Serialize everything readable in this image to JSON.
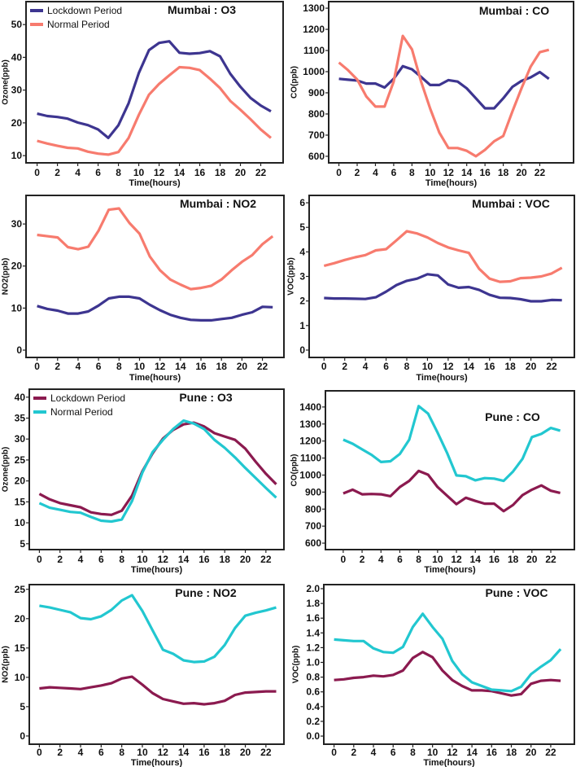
{
  "chart_data": [
    {
      "type": "line",
      "title": "Mumbai : O3",
      "xlabel": "Time(hours)",
      "ylabel": "Ozone(ppb)",
      "xlim": [
        -1.09,
        24.2
      ],
      "ylim": [
        7.8,
        57
      ],
      "xticks": [
        0,
        2,
        4,
        6,
        8,
        10,
        12,
        14,
        16,
        18,
        20,
        22
      ],
      "yticks": [
        10,
        20,
        30,
        40,
        50
      ],
      "legend": "top-left",
      "x": [
        0,
        1,
        2,
        3,
        4,
        5,
        6,
        7,
        8,
        9,
        10,
        11,
        12,
        13,
        14,
        15,
        16,
        17,
        18,
        19,
        20,
        21,
        22,
        23
      ],
      "series": [
        {
          "name": "Lockdown Period",
          "color": "#3d3590",
          "values": [
            22.8,
            22.1,
            21.8,
            21.3,
            20.1,
            19.3,
            18,
            15.4,
            19.3,
            26,
            35.2,
            42.2,
            44.4,
            44.9,
            41.4,
            41.1,
            41.3,
            41.9,
            40.3,
            35,
            31,
            27.6,
            25.3,
            23.5
          ]
        },
        {
          "name": "Normal Period",
          "color": "#f77b6e",
          "values": [
            14.5,
            13.7,
            13,
            12.4,
            12.2,
            11.2,
            10.6,
            10.3,
            11.1,
            15.4,
            22.4,
            28.6,
            31.9,
            34.5,
            37,
            36.8,
            36.1,
            33.5,
            30.6,
            26.7,
            24,
            21.1,
            18,
            15.4
          ]
        }
      ]
    },
    {
      "type": "line",
      "title": "Mumbai : CO",
      "xlabel": "Time(hours)",
      "ylabel": "CO(ppb)",
      "xlim": [
        -1.12,
        25.7
      ],
      "ylim": [
        569,
        1331
      ],
      "xticks": [
        0,
        2,
        4,
        6,
        8,
        10,
        12,
        14,
        16,
        18,
        20,
        22
      ],
      "yticks": [
        600,
        700,
        800,
        900,
        1000,
        1100,
        1200,
        1300
      ],
      "x": [
        0,
        1,
        2,
        3,
        4,
        5,
        6,
        7,
        8,
        9,
        10,
        11,
        12,
        13,
        14,
        15,
        16,
        17,
        18,
        19,
        20,
        21,
        22,
        23
      ],
      "series": [
        {
          "color": "#3d3590",
          "values": [
            966,
            962,
            958,
            944,
            944,
            925,
            966,
            1026,
            1011,
            975,
            937,
            937,
            960,
            953,
            921,
            874,
            827,
            827,
            874,
            928,
            956,
            973,
            998,
            966
          ]
        },
        {
          "color": "#f77b6e",
          "values": [
            1043,
            1007,
            963,
            883,
            835,
            835,
            953,
            1169,
            1105,
            953,
            825,
            712,
            639,
            639,
            626,
            600,
            630,
            671,
            696,
            812,
            921,
            1024,
            1092,
            1103
          ]
        }
      ]
    },
    {
      "type": "line",
      "title": "Mumbai : NO2",
      "xlabel": "Time(hours)",
      "ylabel": "NO2(ppb)",
      "xlim": [
        -1.08,
        24.1
      ],
      "ylim": [
        -1.74,
        36.8
      ],
      "xticks": [
        0,
        2,
        4,
        6,
        8,
        10,
        12,
        14,
        16,
        18,
        20,
        22
      ],
      "yticks": [
        0,
        10,
        20,
        30
      ],
      "x": [
        0,
        1,
        2,
        3,
        4,
        5,
        6,
        7,
        8,
        9,
        10,
        11,
        12,
        13,
        14,
        15,
        16,
        17,
        18,
        19,
        20,
        21,
        22,
        23
      ],
      "series": [
        {
          "color": "#3d3590",
          "values": [
            10.5,
            9.8,
            9.4,
            8.7,
            8.7,
            9.2,
            10.6,
            12.3,
            12.7,
            12.7,
            12.3,
            10.8,
            9.5,
            8.4,
            7.7,
            7.2,
            7.1,
            7.1,
            7.4,
            7.7,
            8.4,
            9,
            10.3,
            10.2
          ]
        },
        {
          "color": "#f77b6e",
          "values": [
            27.4,
            27.1,
            26.8,
            24.5,
            24,
            24.6,
            28.4,
            33.4,
            33.7,
            30.3,
            27.7,
            22.3,
            19,
            16.8,
            15.6,
            14.5,
            14.8,
            15.3,
            16.8,
            19,
            21,
            22.6,
            25.2,
            27.1
          ]
        }
      ]
    },
    {
      "type": "line",
      "title": "Mumbai : VOC",
      "xlabel": "Time(hours)",
      "ylabel": "VOC(ppb)",
      "xlim": [
        -2.46,
        24.2
      ],
      "ylim": [
        -0.3,
        6.3
      ],
      "xticks": [
        0,
        2,
        4,
        6,
        8,
        10,
        12,
        14,
        16,
        18,
        20,
        22
      ],
      "yticks": [
        0,
        1,
        2,
        3,
        4,
        5,
        6
      ],
      "x": [
        0,
        1,
        2,
        3,
        4,
        5,
        6,
        7,
        8,
        9,
        10,
        11,
        12,
        13,
        14,
        15,
        16,
        17,
        18,
        19,
        20,
        21,
        22,
        23
      ],
      "series": [
        {
          "color": "#3d3590",
          "values": [
            2.12,
            2.1,
            2.1,
            2.09,
            2.08,
            2.15,
            2.38,
            2.65,
            2.82,
            2.91,
            3.09,
            3.04,
            2.67,
            2.54,
            2.57,
            2.45,
            2.25,
            2.13,
            2.12,
            2.07,
            1.99,
            1.99,
            2.04,
            2.03
          ]
        },
        {
          "color": "#f77b6e",
          "values": [
            3.43,
            3.54,
            3.67,
            3.78,
            3.87,
            4.06,
            4.11,
            4.47,
            4.84,
            4.75,
            4.59,
            4.36,
            4.18,
            4.06,
            3.96,
            3.31,
            2.91,
            2.78,
            2.8,
            2.93,
            2.95,
            3.0,
            3.12,
            3.35
          ]
        }
      ]
    },
    {
      "type": "line",
      "title": "Pune : O3",
      "xlabel": "Time(hours)",
      "ylabel": "Ozone(ppb)",
      "xlim": [
        -0.98,
        23.75
      ],
      "ylim": [
        3.6,
        41.9
      ],
      "xticks": [
        0,
        2,
        4,
        6,
        8,
        10,
        12,
        14,
        16,
        18,
        20,
        22
      ],
      "yticks": [
        5,
        10,
        15,
        20,
        25,
        30,
        35,
        40
      ],
      "legend": "top-left",
      "x": [
        0,
        1,
        2,
        3,
        4,
        5,
        6,
        7,
        8,
        9,
        10,
        11,
        12,
        13,
        14,
        15,
        16,
        17,
        18,
        19,
        20,
        21,
        22,
        23
      ],
      "series": [
        {
          "name": "Lockdown Period",
          "color": "#8b1a4f",
          "values": [
            16.9,
            15.6,
            14.7,
            14.2,
            13.7,
            12.5,
            12.1,
            11.9,
            12.9,
            16.5,
            22.3,
            26.6,
            30.1,
            32.2,
            33.5,
            33.9,
            33,
            31.4,
            30.6,
            29.8,
            27.7,
            24.6,
            21.7,
            19.2
          ]
        },
        {
          "name": "Normal Period",
          "color": "#22c7d0",
          "values": [
            14.7,
            13.6,
            13.1,
            12.6,
            12.4,
            11.4,
            10.5,
            10.3,
            10.8,
            15.2,
            22,
            26.9,
            29.8,
            32.4,
            34.4,
            33.7,
            32.4,
            29.8,
            27.9,
            25.6,
            23.1,
            20.7,
            18.3,
            16
          ]
        }
      ]
    },
    {
      "type": "line",
      "title": "Pune : CO",
      "xlabel": "Time(hours)",
      "ylabel": "CO(ppb)",
      "xlim": [
        -4.3,
        24.5
      ],
      "ylim": [
        562,
        1495
      ],
      "xticks": [
        0,
        2,
        4,
        6,
        8,
        10,
        12,
        14,
        16,
        18,
        20,
        22
      ],
      "yticks": [
        600,
        700,
        800,
        900,
        1000,
        1100,
        1200,
        1300,
        1400
      ],
      "x": [
        0,
        1,
        2,
        3,
        4,
        5,
        6,
        7,
        8,
        9,
        10,
        11,
        12,
        13,
        14,
        15,
        16,
        17,
        18,
        19,
        20,
        21,
        22,
        23
      ],
      "series": [
        {
          "color": "#8b1a4f",
          "values": [
            892,
            914,
            887,
            889,
            887,
            876,
            930,
            966,
            1024,
            1002,
            930,
            879,
            829,
            867,
            848,
            832,
            832,
            788,
            824,
            882,
            914,
            939,
            908,
            895
          ]
        },
        {
          "color": "#22c7d0",
          "values": [
            1208,
            1184,
            1151,
            1119,
            1077,
            1081,
            1124,
            1208,
            1405,
            1361,
            1250,
            1132,
            998,
            993,
            969,
            982,
            979,
            966,
            1021,
            1095,
            1223,
            1242,
            1277,
            1261
          ]
        }
      ]
    },
    {
      "type": "line",
      "title": "Pune : NO2",
      "xlabel": "Time(hours)",
      "ylabel": "NO2(ppb)",
      "xlim": [
        -0.98,
        23.75
      ],
      "ylim": [
        -1.4,
        25.8
      ],
      "xticks": [
        0,
        2,
        4,
        6,
        8,
        10,
        12,
        14,
        16,
        18,
        20,
        22
      ],
      "yticks": [
        0,
        5,
        10,
        15,
        20,
        25
      ],
      "x": [
        0,
        1,
        2,
        3,
        4,
        5,
        6,
        7,
        8,
        9,
        10,
        11,
        12,
        13,
        14,
        15,
        16,
        17,
        18,
        19,
        20,
        21,
        22,
        23
      ],
      "series": [
        {
          "color": "#8b1a4f",
          "values": [
            8.1,
            8.3,
            8.2,
            8.1,
            8,
            8.3,
            8.6,
            9,
            9.8,
            10.1,
            8.75,
            7.3,
            6.3,
            5.9,
            5.5,
            5.6,
            5.4,
            5.6,
            6,
            7,
            7.4,
            7.5,
            7.6,
            7.6
          ]
        },
        {
          "color": "#22c7d0",
          "values": [
            22.2,
            21.9,
            21.5,
            21.1,
            20.1,
            19.9,
            20.4,
            21.5,
            23.1,
            24,
            21.3,
            18,
            14.7,
            14,
            12.9,
            12.6,
            12.7,
            13.5,
            15.5,
            18.4,
            20.5,
            21,
            21.4,
            21.9
          ]
        }
      ]
    },
    {
      "type": "line",
      "title": "Pune : VOC",
      "xlabel": "Time(hours)",
      "ylabel": "VOC(ppb)",
      "xlim": [
        -1.04,
        24.4
      ],
      "ylim": [
        -0.11,
        2.055
      ],
      "xticks": [
        0,
        2,
        4,
        6,
        8,
        10,
        12,
        14,
        16,
        18,
        20,
        22
      ],
      "yticks": [
        "0.0",
        "0.2",
        "0.4",
        "0.6",
        "0.8",
        "1.0",
        "1.2",
        "1.4",
        "1.6",
        "1.8",
        "2.0"
      ],
      "x": [
        0,
        1,
        2,
        3,
        4,
        5,
        6,
        7,
        8,
        9,
        10,
        11,
        12,
        13,
        14,
        15,
        16,
        17,
        18,
        19,
        20,
        21,
        22,
        23
      ],
      "series": [
        {
          "color": "#8b1a4f",
          "values": [
            0.76,
            0.77,
            0.79,
            0.8,
            0.82,
            0.81,
            0.83,
            0.89,
            1.06,
            1.14,
            1.07,
            0.89,
            0.76,
            0.68,
            0.62,
            0.62,
            0.61,
            0.58,
            0.55,
            0.57,
            0.71,
            0.75,
            0.76,
            0.75
          ]
        },
        {
          "color": "#22c7d0",
          "values": [
            1.31,
            1.3,
            1.29,
            1.29,
            1.19,
            1.14,
            1.13,
            1.21,
            1.48,
            1.66,
            1.48,
            1.32,
            1.02,
            0.84,
            0.73,
            0.68,
            0.63,
            0.62,
            0.61,
            0.67,
            0.84,
            0.94,
            1.03,
            1.18
          ]
        }
      ]
    }
  ]
}
